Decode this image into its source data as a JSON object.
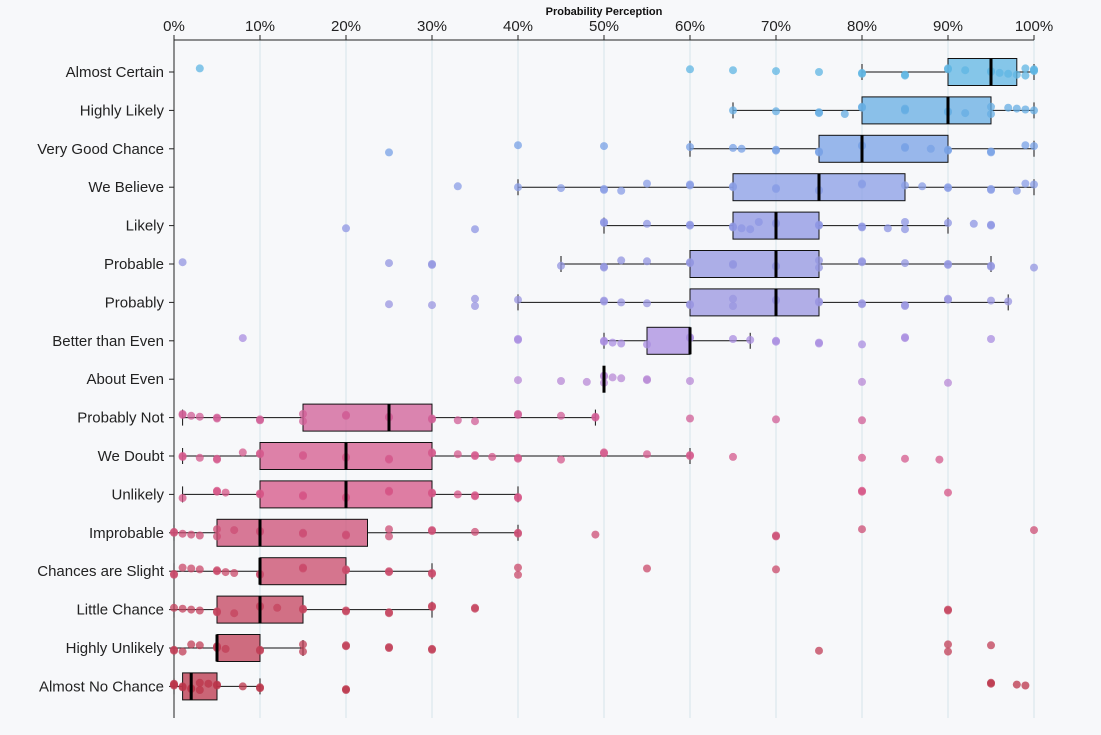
{
  "chart_data": {
    "type": "boxplot",
    "title": "Probability Perception",
    "xlim": [
      0,
      100
    ],
    "x_ticks": [
      0,
      10,
      20,
      30,
      40,
      50,
      60,
      70,
      80,
      90,
      100
    ],
    "x_tick_labels": [
      "0%",
      "10%",
      "20%",
      "30%",
      "40%",
      "50%",
      "60%",
      "70%",
      "80%",
      "90%",
      "100%"
    ],
    "grid": "vertical",
    "categories": [
      {
        "label": "Almost Certain",
        "whisker_low": 80,
        "q1": 90,
        "median": 95,
        "q3": 98,
        "whisker_high": 100,
        "color": "#5fb6e3",
        "points": [
          3,
          60,
          65,
          70,
          75,
          80,
          80,
          85,
          85,
          90,
          90,
          92,
          95,
          95,
          96,
          97,
          98,
          99,
          99,
          100,
          100,
          100
        ]
      },
      {
        "label": "Highly Likely",
        "whisker_low": 65,
        "q1": 80,
        "median": 90,
        "q3": 95,
        "whisker_high": 100,
        "color": "#66ade3",
        "points": [
          65,
          70,
          75,
          75,
          78,
          80,
          80,
          85,
          85,
          85,
          90,
          90,
          92,
          95,
          95,
          97,
          98,
          99,
          100
        ]
      },
      {
        "label": "Very Good Chance",
        "whisker_low": 60,
        "q1": 75,
        "median": 80,
        "q3": 90,
        "whisker_high": 100,
        "color": "#78a2e6",
        "points": [
          25,
          40,
          50,
          60,
          65,
          66,
          70,
          70,
          75,
          75,
          80,
          80,
          85,
          85,
          88,
          90,
          90,
          95,
          95,
          99,
          100
        ]
      },
      {
        "label": "We Believe",
        "whisker_low": 40,
        "q1": 65,
        "median": 75,
        "q3": 85,
        "whisker_high": 100,
        "color": "#8a9ee6",
        "points": [
          33,
          40,
          45,
          50,
          50,
          52,
          55,
          60,
          60,
          65,
          65,
          70,
          70,
          75,
          75,
          80,
          80,
          85,
          87,
          90,
          90,
          95,
          95,
          98,
          99,
          100
        ]
      },
      {
        "label": "Likely",
        "whisker_low": 50,
        "q1": 65,
        "median": 70,
        "q3": 75,
        "whisker_high": 90,
        "color": "#8e95e3",
        "points": [
          20,
          35,
          50,
          50,
          55,
          60,
          60,
          65,
          65,
          66,
          67,
          68,
          70,
          70,
          75,
          75,
          80,
          80,
          83,
          85,
          85,
          90,
          93,
          95,
          95
        ]
      },
      {
        "label": "Probable",
        "whisker_low": 45,
        "q1": 60,
        "median": 70,
        "q3": 75,
        "whisker_high": 95,
        "color": "#9396e0",
        "points": [
          1,
          25,
          30,
          30,
          45,
          50,
          50,
          52,
          55,
          60,
          60,
          65,
          65,
          70,
          70,
          75,
          75,
          80,
          80,
          85,
          90,
          90,
          95,
          95,
          100
        ]
      },
      {
        "label": "Probably",
        "whisker_low": 40,
        "q1": 60,
        "median": 70,
        "q3": 75,
        "whisker_high": 97,
        "color": "#9a96e0",
        "points": [
          25,
          30,
          35,
          35,
          40,
          50,
          50,
          52,
          55,
          60,
          60,
          65,
          65,
          70,
          70,
          75,
          75,
          80,
          80,
          85,
          85,
          90,
          90,
          95,
          97
        ]
      },
      {
        "label": "Better than Even",
        "whisker_low": 50,
        "q1": 55,
        "median": 60,
        "q3": 60,
        "whisker_high": 67,
        "color": "#a98ee0",
        "points": [
          8,
          40,
          40,
          50,
          50,
          51,
          52,
          55,
          60,
          60,
          65,
          67,
          70,
          70,
          75,
          75,
          80,
          85,
          85,
          95
        ]
      },
      {
        "label": "About Even",
        "whisker_low": 50,
        "q1": 50,
        "median": 50,
        "q3": 50,
        "whisker_high": 50,
        "color": "#b88ad6",
        "points": [
          40,
          45,
          48,
          50,
          50,
          50,
          51,
          52,
          55,
          55,
          60,
          80,
          90
        ]
      },
      {
        "label": "Probably Not",
        "whisker_low": 1,
        "q1": 15,
        "median": 25,
        "q3": 30,
        "whisker_high": 49,
        "color": "#d05e96",
        "points": [
          1,
          1,
          2,
          3,
          5,
          5,
          10,
          10,
          15,
          15,
          20,
          20,
          25,
          25,
          30,
          30,
          33,
          35,
          40,
          40,
          45,
          49,
          49,
          60,
          70,
          80
        ]
      },
      {
        "label": "We Doubt",
        "whisker_low": 1,
        "q1": 10,
        "median": 20,
        "q3": 30,
        "whisker_high": 60,
        "color": "#d45a8c",
        "points": [
          1,
          1,
          3,
          5,
          5,
          8,
          10,
          10,
          15,
          15,
          20,
          20,
          25,
          25,
          30,
          30,
          33,
          35,
          35,
          37,
          40,
          40,
          45,
          50,
          50,
          55,
          60,
          60,
          65,
          80,
          85,
          89
        ]
      },
      {
        "label": "Unlikely",
        "whisker_low": 1,
        "q1": 10,
        "median": 20,
        "q3": 30,
        "whisker_high": 40,
        "color": "#d65485",
        "points": [
          1,
          5,
          5,
          6,
          10,
          10,
          15,
          15,
          20,
          20,
          25,
          25,
          30,
          30,
          33,
          35,
          35,
          40,
          40,
          80,
          80,
          90
        ]
      },
      {
        "label": "Improbable",
        "whisker_low": 0,
        "q1": 5,
        "median": 10,
        "q3": 22.5,
        "whisker_high": 40,
        "color": "#cc4e74",
        "points": [
          0,
          0,
          1,
          2,
          3,
          5,
          5,
          7,
          10,
          10,
          15,
          15,
          20,
          20,
          25,
          25,
          30,
          30,
          35,
          40,
          40,
          49,
          70,
          70,
          80,
          100
        ]
      },
      {
        "label": "Chances are Slight",
        "whisker_low": 0,
        "q1": 10,
        "median": 10,
        "q3": 20,
        "whisker_high": 30,
        "color": "#c94a6a",
        "points": [
          0,
          0,
          1,
          2,
          3,
          5,
          5,
          6,
          7,
          10,
          10,
          15,
          15,
          20,
          20,
          25,
          25,
          30,
          30,
          40,
          40,
          55,
          70
        ]
      },
      {
        "label": "Little Chance",
        "whisker_low": 0,
        "q1": 5,
        "median": 10,
        "q3": 15,
        "whisker_high": 30,
        "color": "#c4435e",
        "points": [
          0,
          1,
          2,
          3,
          5,
          5,
          7,
          10,
          10,
          12,
          15,
          15,
          20,
          20,
          25,
          25,
          30,
          30,
          35,
          35,
          90,
          90
        ]
      },
      {
        "label": "Highly Unlikely",
        "whisker_low": 0,
        "q1": 5,
        "median": 5,
        "q3": 10,
        "whisker_high": 15,
        "color": "#c03e55",
        "points": [
          0,
          0,
          1,
          2,
          3,
          5,
          5,
          5,
          6,
          10,
          10,
          15,
          15,
          20,
          20,
          25,
          25,
          30,
          30,
          75,
          90,
          90,
          95
        ]
      },
      {
        "label": "Almost No Chance",
        "whisker_low": 0,
        "q1": 1,
        "median": 2,
        "q3": 5,
        "whisker_high": 10,
        "color": "#bb3449",
        "points": [
          0,
          0,
          0,
          1,
          1,
          2,
          2,
          3,
          3,
          4,
          5,
          5,
          8,
          10,
          10,
          20,
          20,
          95,
          95,
          98,
          99
        ]
      }
    ]
  }
}
